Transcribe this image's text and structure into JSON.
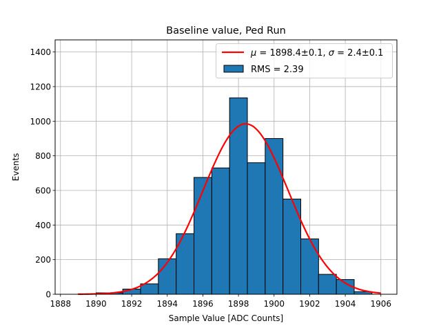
{
  "chart_data": {
    "type": "bar",
    "title": "Baseline value, Ped Run",
    "xlabel": "Sample Value [ADC Counts]",
    "ylabel": "Events",
    "xlim": [
      1887.7,
      1906.9
    ],
    "ylim": [
      0,
      1470
    ],
    "grid": true,
    "legend_position": "top-right",
    "x_ticks": [
      1888,
      1890,
      1892,
      1894,
      1896,
      1898,
      1900,
      1902,
      1904,
      1906
    ],
    "y_ticks": [
      0,
      200,
      400,
      600,
      800,
      1000,
      1200,
      1400
    ],
    "bins": {
      "edges": [
        1889.0,
        1890.0,
        1891.5,
        1892.5,
        1893.5,
        1894.5,
        1895.5,
        1896.5,
        1897.5,
        1898.5,
        1899.5,
        1900.5,
        1901.5,
        1902.5,
        1903.5,
        1904.5,
        1905.5
      ],
      "counts": [
        2,
        8,
        30,
        60,
        205,
        350,
        675,
        730,
        1135,
        760,
        900,
        550,
        320,
        115,
        85,
        15
      ]
    },
    "fit": {
      "type": "gaussian",
      "mu": 1898.4,
      "sigma": 2.4,
      "amplitude": 985,
      "x_range": [
        1889.0,
        1906.0
      ]
    },
    "series": [
      {
        "name": "$\\mu = 1898.4\\pm0.1$, $\\sigma = 2.4\\pm0.1$",
        "kind": "line",
        "color": "#ff0000"
      },
      {
        "name": "RMS = 2.39",
        "kind": "hist",
        "color": "#1f77b4"
      }
    ],
    "legend": {
      "fit_label": {
        "mu_sym": "μ",
        "mu_text": " = 1898.4±0.1, ",
        "sigma_sym": "σ",
        "sigma_text": " = 2.4±0.1"
      },
      "hist_label": "RMS = 2.39"
    }
  }
}
